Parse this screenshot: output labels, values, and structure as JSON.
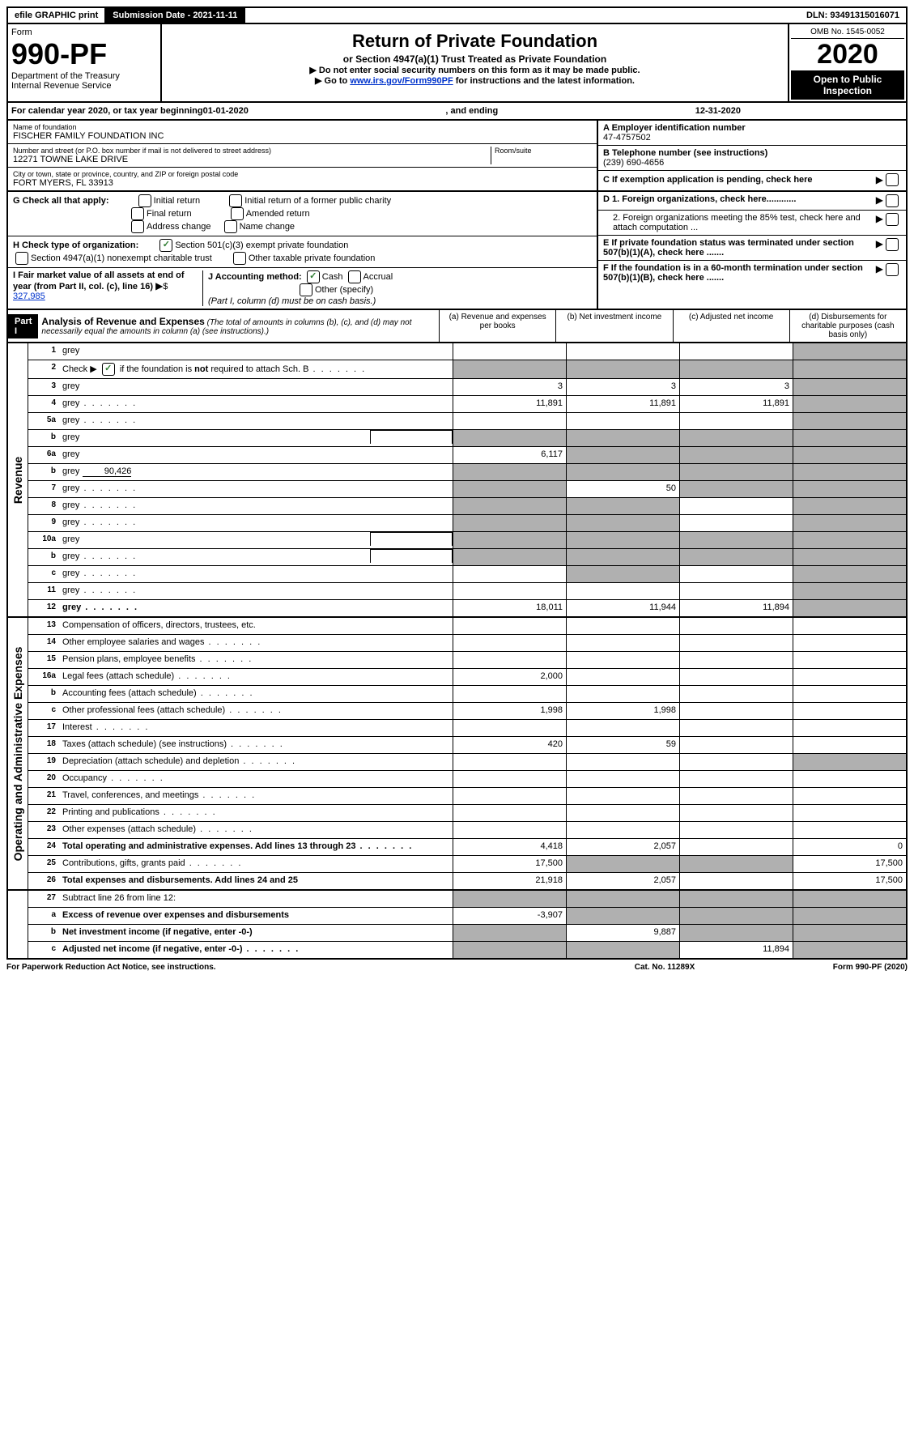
{
  "top": {
    "efile": "efile GRAPHIC print",
    "submission": "Submission Date - 2021-11-11",
    "dln": "DLN: 93491315016071"
  },
  "header": {
    "form_label": "Form",
    "form_num": "990-PF",
    "dept": "Department of the Treasury",
    "irs": "Internal Revenue Service",
    "title": "Return of Private Foundation",
    "subtitle": "or Section 4947(a)(1) Trust Treated as Private Foundation",
    "instr1": "▶ Do not enter social security numbers on this form as it may be made public.",
    "instr2_pre": "▶ Go to ",
    "instr2_link": "www.irs.gov/Form990PF",
    "instr2_post": " for instructions and the latest information.",
    "omb": "OMB No. 1545-0052",
    "year": "2020",
    "open": "Open to Public Inspection"
  },
  "calendar": {
    "pre": "For calendar year 2020, or tax year beginning ",
    "begin": "01-01-2020",
    "mid": ", and ending ",
    "end": "12-31-2020"
  },
  "info": {
    "name_label": "Name of foundation",
    "name": "FISCHER FAMILY FOUNDATION INC",
    "addr_label": "Number and street (or P.O. box number if mail is not delivered to street address)",
    "addr": "12271 TOWNE LAKE DRIVE",
    "room_label": "Room/suite",
    "city_label": "City or town, state or province, country, and ZIP or foreign postal code",
    "city": "FORT MYERS, FL  33913",
    "a_label": "A Employer identification number",
    "a_val": "47-4757502",
    "b_label": "B Telephone number (see instructions)",
    "b_val": "(239) 690-4656",
    "c_label": "C If exemption application is pending, check here",
    "d1": "D 1. Foreign organizations, check here............",
    "d2": "2. Foreign organizations meeting the 85% test, check here and attach computation ...",
    "e": "E  If private foundation status was terminated under section 507(b)(1)(A), check here .......",
    "f": "F  If the foundation is in a 60-month termination under section 507(b)(1)(B), check here .......",
    "g_label": "G Check all that apply:",
    "g_opts": [
      "Initial return",
      "Initial return of a former public charity",
      "Final return",
      "Amended return",
      "Address change",
      "Name change"
    ],
    "h_label": "H Check type of organization:",
    "h_opts": [
      "Section 501(c)(3) exempt private foundation",
      "Section 4947(a)(1) nonexempt charitable trust",
      "Other taxable private foundation"
    ],
    "i_label": "I Fair market value of all assets at end of year (from Part II, col. (c), line 16)",
    "i_val": "327,985",
    "j_label": "J Accounting method:",
    "j_cash": "Cash",
    "j_accrual": "Accrual",
    "j_other": "Other (specify)",
    "j_note": "(Part I, column (d) must be on cash basis.)"
  },
  "part1": {
    "label": "Part I",
    "title": "Analysis of Revenue and Expenses",
    "subtitle": "(The total of amounts in columns (b), (c), and (d) may not necessarily equal the amounts in column (a) (see instructions).)",
    "cols": {
      "a": "(a) Revenue and expenses per books",
      "b": "(b) Net investment income",
      "c": "(c) Adjusted net income",
      "d": "(d) Disbursements for charitable purposes (cash basis only)"
    }
  },
  "sections": {
    "revenue": "Revenue",
    "expenses": "Operating and Administrative Expenses"
  },
  "lines": [
    {
      "n": "1",
      "d": "grey",
      "a": "",
      "b": "",
      "c": ""
    },
    {
      "n": "2",
      "d": "grey",
      "dots": true,
      "a": "grey",
      "b": "grey",
      "c": "grey",
      "check": true
    },
    {
      "n": "3",
      "d": "grey",
      "a": "3",
      "b": "3",
      "c": "3"
    },
    {
      "n": "4",
      "d": "grey",
      "dots": true,
      "a": "11,891",
      "b": "11,891",
      "c": "11,891"
    },
    {
      "n": "5a",
      "d": "grey",
      "dots": true,
      "a": "",
      "b": "",
      "c": ""
    },
    {
      "n": "b",
      "d": "grey",
      "box": true,
      "a": "grey",
      "b": "grey",
      "c": "grey"
    },
    {
      "n": "6a",
      "d": "grey",
      "a": "6,117",
      "b": "grey",
      "c": "grey"
    },
    {
      "n": "b",
      "d": "grey",
      "inline": "90,426",
      "a": "grey",
      "b": "grey",
      "c": "grey"
    },
    {
      "n": "7",
      "d": "grey",
      "dots": true,
      "a": "grey",
      "b": "50",
      "c": "grey"
    },
    {
      "n": "8",
      "d": "grey",
      "dots": true,
      "a": "grey",
      "b": "grey",
      "c": ""
    },
    {
      "n": "9",
      "d": "grey",
      "dots": true,
      "a": "grey",
      "b": "grey",
      "c": ""
    },
    {
      "n": "10a",
      "d": "grey",
      "box": true,
      "a": "grey",
      "b": "grey",
      "c": "grey"
    },
    {
      "n": "b",
      "d": "grey",
      "dots": true,
      "box": true,
      "a": "grey",
      "b": "grey",
      "c": "grey"
    },
    {
      "n": "c",
      "d": "grey",
      "dots": true,
      "a": "",
      "b": "grey",
      "c": ""
    },
    {
      "n": "11",
      "d": "grey",
      "dots": true,
      "a": "",
      "b": "",
      "c": ""
    },
    {
      "n": "12",
      "d": "grey",
      "dots": true,
      "bold": true,
      "a": "18,011",
      "b": "11,944",
      "c": "11,894"
    }
  ],
  "exp_lines": [
    {
      "n": "13",
      "d": "Compensation of officers, directors, trustees, etc.",
      "a": "",
      "b": "",
      "c": "",
      "dcol": ""
    },
    {
      "n": "14",
      "d": "Other employee salaries and wages",
      "dots": true,
      "a": "",
      "b": "",
      "c": "",
      "dcol": ""
    },
    {
      "n": "15",
      "d": "Pension plans, employee benefits",
      "dots": true,
      "a": "",
      "b": "",
      "c": "",
      "dcol": ""
    },
    {
      "n": "16a",
      "d": "Legal fees (attach schedule)",
      "dots": true,
      "a": "2,000",
      "b": "",
      "c": "",
      "dcol": ""
    },
    {
      "n": "b",
      "d": "Accounting fees (attach schedule)",
      "dots": true,
      "a": "",
      "b": "",
      "c": "",
      "dcol": ""
    },
    {
      "n": "c",
      "d": "Other professional fees (attach schedule)",
      "dots": true,
      "a": "1,998",
      "b": "1,998",
      "c": "",
      "dcol": ""
    },
    {
      "n": "17",
      "d": "Interest",
      "dots": true,
      "a": "",
      "b": "",
      "c": "",
      "dcol": ""
    },
    {
      "n": "18",
      "d": "Taxes (attach schedule) (see instructions)",
      "dots": true,
      "a": "420",
      "b": "59",
      "c": "",
      "dcol": ""
    },
    {
      "n": "19",
      "d": "Depreciation (attach schedule) and depletion",
      "dots": true,
      "a": "",
      "b": "",
      "c": "",
      "dcol": "grey"
    },
    {
      "n": "20",
      "d": "Occupancy",
      "dots": true,
      "a": "",
      "b": "",
      "c": "",
      "dcol": ""
    },
    {
      "n": "21",
      "d": "Travel, conferences, and meetings",
      "dots": true,
      "a": "",
      "b": "",
      "c": "",
      "dcol": ""
    },
    {
      "n": "22",
      "d": "Printing and publications",
      "dots": true,
      "a": "",
      "b": "",
      "c": "",
      "dcol": ""
    },
    {
      "n": "23",
      "d": "Other expenses (attach schedule)",
      "dots": true,
      "a": "",
      "b": "",
      "c": "",
      "dcol": ""
    },
    {
      "n": "24",
      "d": "Total operating and administrative expenses. Add lines 13 through 23",
      "dots": true,
      "bold": true,
      "a": "4,418",
      "b": "2,057",
      "c": "",
      "dcol": "0"
    },
    {
      "n": "25",
      "d": "Contributions, gifts, grants paid",
      "dots": true,
      "a": "17,500",
      "b": "grey",
      "c": "grey",
      "dcol": "17,500"
    },
    {
      "n": "26",
      "d": "Total expenses and disbursements. Add lines 24 and 25",
      "bold": true,
      "a": "21,918",
      "b": "2,057",
      "c": "",
      "dcol": "17,500"
    }
  ],
  "bottom_lines": [
    {
      "n": "27",
      "d": "Subtract line 26 from line 12:",
      "a": "grey",
      "b": "grey",
      "c": "grey",
      "dcol": "grey"
    },
    {
      "n": "a",
      "d": "Excess of revenue over expenses and disbursements",
      "bold": true,
      "a": "-3,907",
      "b": "grey",
      "c": "grey",
      "dcol": "grey"
    },
    {
      "n": "b",
      "d": "Net investment income (if negative, enter -0-)",
      "bold": true,
      "a": "grey",
      "b": "9,887",
      "c": "grey",
      "dcol": "grey"
    },
    {
      "n": "c",
      "d": "Adjusted net income (if negative, enter -0-)",
      "dots": true,
      "bold": true,
      "a": "grey",
      "b": "grey",
      "c": "11,894",
      "dcol": "grey"
    }
  ],
  "footer": {
    "left": "For Paperwork Reduction Act Notice, see instructions.",
    "mid": "Cat. No. 11289X",
    "right": "Form 990-PF (2020)"
  }
}
